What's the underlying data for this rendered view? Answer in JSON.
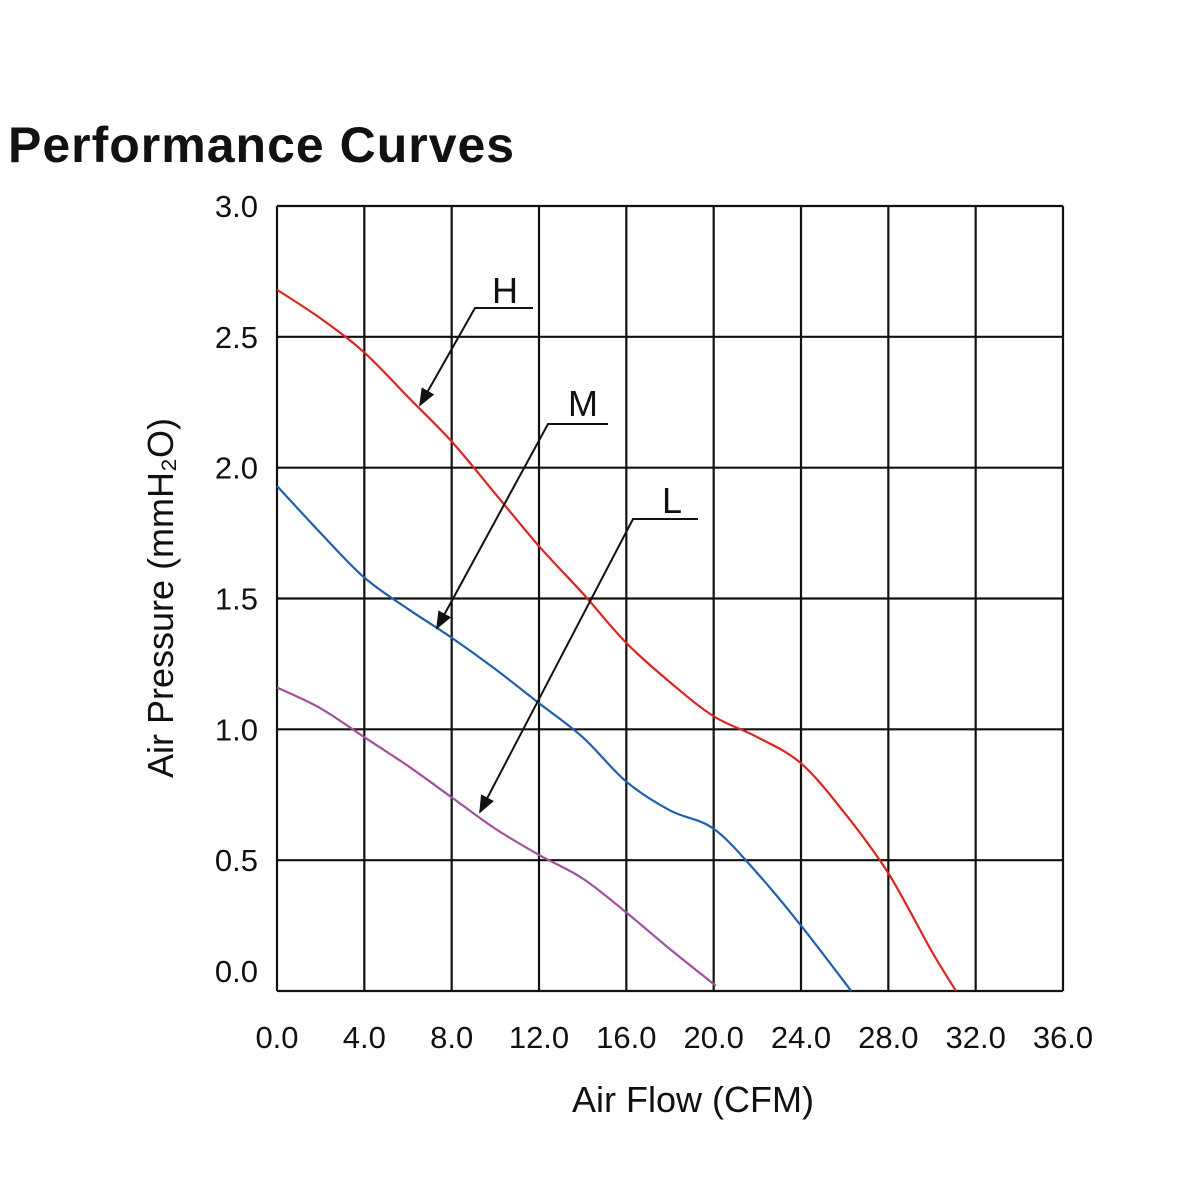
{
  "chart_data": {
    "type": "line",
    "title": "Performance Curves",
    "xlabel": "Air Flow (CFM)",
    "ylabel": "Air Pressure (mmH₂O)",
    "xlim": [
      0,
      36
    ],
    "ylim": [
      0,
      3
    ],
    "grid": true,
    "x_ticks": [
      "0.0",
      "4.0",
      "8.0",
      "12.0",
      "16.0",
      "20.0",
      "24.0",
      "28.0",
      "32.0",
      "36.0"
    ],
    "y_ticks": [
      "0.0",
      "0.5",
      "1.0",
      "1.5",
      "2.0",
      "2.5",
      "3.0"
    ],
    "series": [
      {
        "name": "H",
        "color": "#e0231c",
        "x": [
          0,
          2,
          4,
          6,
          8,
          10,
          12,
          14,
          16,
          18,
          20,
          22,
          24,
          26,
          28,
          30,
          31.1
        ],
        "y": [
          2.68,
          2.57,
          2.44,
          2.27,
          2.1,
          1.9,
          1.7,
          1.52,
          1.33,
          1.18,
          1.05,
          0.97,
          0.87,
          0.68,
          0.45,
          0.15,
          0
        ]
      },
      {
        "name": "M",
        "color": "#1f5fae",
        "x": [
          0,
          2,
          4,
          6,
          8,
          10,
          12,
          14,
          16,
          18,
          20,
          22,
          24,
          26.3
        ],
        "y": [
          1.93,
          1.75,
          1.58,
          1.46,
          1.35,
          1.23,
          1.1,
          0.97,
          0.8,
          0.69,
          0.62,
          0.45,
          0.25,
          0
        ]
      },
      {
        "name": "L",
        "color": "#a2509a",
        "x": [
          0,
          2,
          4,
          6,
          8,
          10,
          12,
          14,
          16,
          18,
          20.1
        ],
        "y": [
          1.16,
          1.08,
          0.97,
          0.86,
          0.74,
          0.62,
          0.52,
          0.43,
          0.3,
          0.16,
          0.02
        ]
      }
    ],
    "annotations": [
      "H",
      "M",
      "L"
    ]
  }
}
